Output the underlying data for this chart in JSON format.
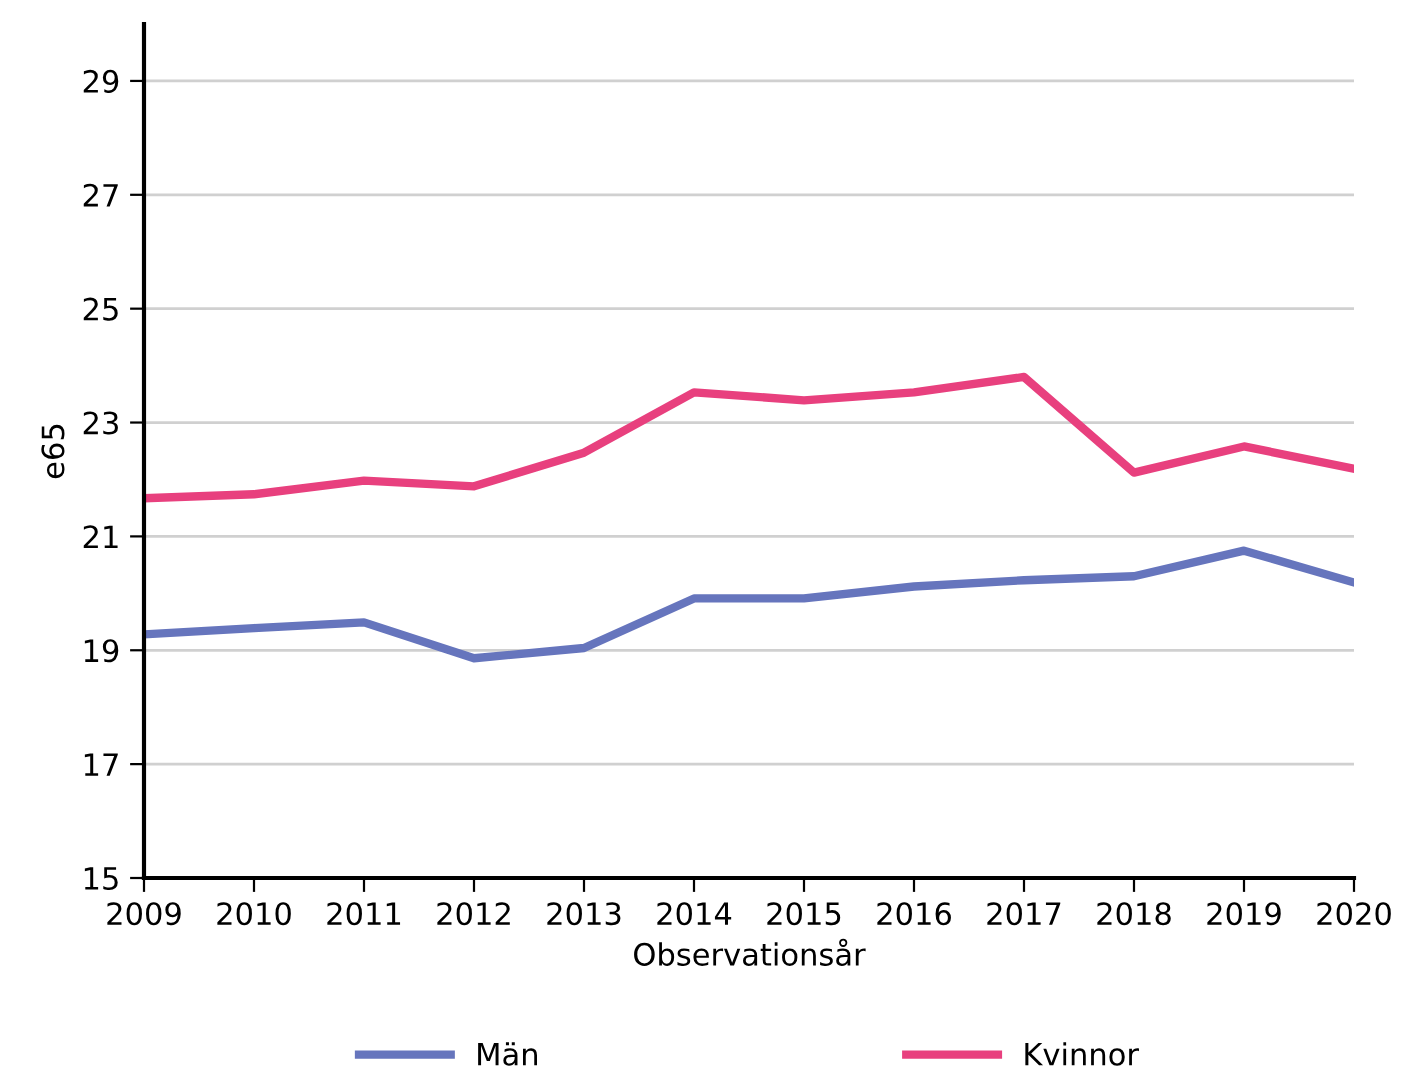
{
  "chart_data": {
    "type": "line",
    "xlabel": "Observationsår",
    "ylabel": "e65",
    "x": [
      2009,
      2010,
      2011,
      2012,
      2013,
      2014,
      2015,
      2016,
      2017,
      2018,
      2019,
      2020
    ],
    "xlim": [
      2009,
      2020
    ],
    "xticks": [
      2009,
      2010,
      2011,
      2012,
      2013,
      2014,
      2015,
      2016,
      2017,
      2018,
      2019,
      2020
    ],
    "ylim": [
      15,
      30
    ],
    "yticks": [
      15,
      17,
      19,
      21,
      23,
      25,
      27,
      29
    ],
    "grid": "y",
    "legend": "bottom",
    "marker": "none",
    "line_style": "solid",
    "series": [
      {
        "name": "Män",
        "color": "#6675bd",
        "values": [
          19.28,
          19.39,
          19.49,
          18.86,
          19.04,
          19.91,
          19.91,
          20.12,
          20.23,
          20.3,
          20.75,
          20.19
        ]
      },
      {
        "name": "Kvinnor",
        "color": "#e8407e",
        "values": [
          21.67,
          21.74,
          21.98,
          21.88,
          22.47,
          23.53,
          23.39,
          23.53,
          23.8,
          22.12,
          22.58,
          22.19
        ]
      }
    ]
  }
}
